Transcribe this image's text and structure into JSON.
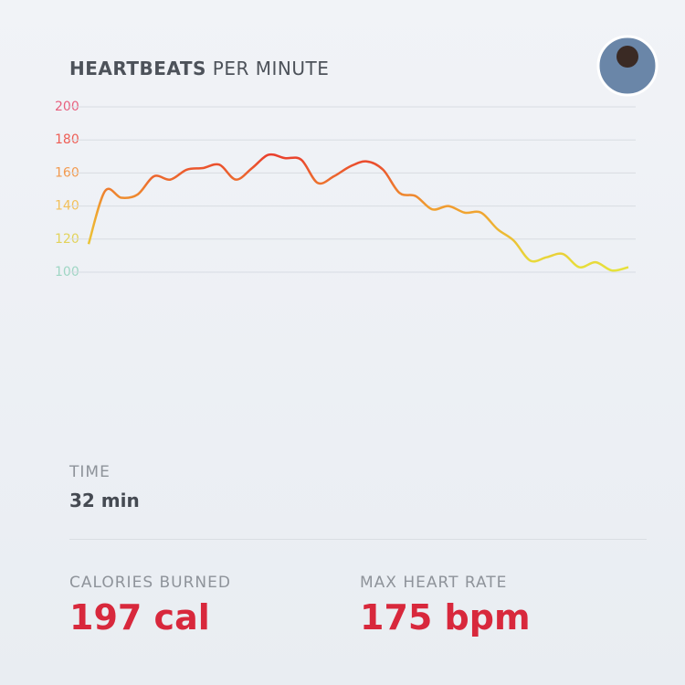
{
  "chart_data": {
    "type": "line",
    "title": {
      "bold": "HEARTBEATS",
      "rest": "PER MINUTE"
    },
    "values": [
      117,
      149,
      145,
      147,
      158,
      156,
      162,
      163,
      165,
      156,
      163,
      171,
      169,
      168,
      154,
      158,
      164,
      167,
      162,
      148,
      146,
      138,
      140,
      136,
      136,
      126,
      119,
      107,
      109,
      111,
      103,
      106,
      101,
      103
    ],
    "ylim": [
      100,
      200
    ],
    "yticks": [
      100,
      120,
      140,
      160,
      180,
      200
    ],
    "tick_colors": [
      "#9fd6c4",
      "#e2d35a",
      "#f2c05a",
      "#f29a4e",
      "#ee5e55",
      "#e8607e"
    ],
    "gradient": [
      "#e6e43c",
      "#f0a030",
      "#e8302c"
    ],
    "grid": true
  },
  "stats": {
    "time": {
      "label": "TIME",
      "value": "32 min"
    },
    "calories": {
      "label": "CALORIES BURNED",
      "value": "197 cal"
    },
    "max_heart_rate": {
      "label": "MAX HEART RATE",
      "value": "175 bpm"
    }
  }
}
